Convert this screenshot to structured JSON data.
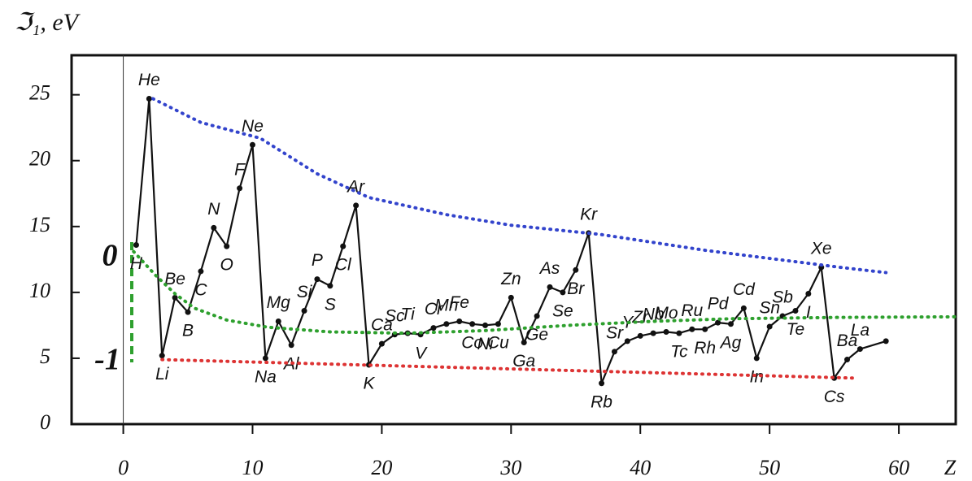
{
  "chart_data": {
    "type": "line",
    "y_label": "ℑ₁, eV",
    "x_label": "Z",
    "xlim": [
      -4,
      64.4
    ],
    "ylim": [
      0,
      28
    ],
    "xticks": [
      0,
      10,
      20,
      30,
      40,
      50,
      60
    ],
    "yticks": [
      0,
      5,
      10,
      15,
      20,
      25
    ],
    "series": [
      {
        "color": "#111111",
        "style": "solid",
        "x": [
          1,
          2,
          3,
          4,
          5,
          6,
          7,
          8,
          9,
          10,
          11,
          12,
          13,
          14,
          15,
          16,
          17,
          18,
          19,
          20,
          21,
          22,
          23,
          24,
          25,
          26,
          27,
          28,
          29,
          30,
          31,
          32,
          33,
          34,
          35,
          36,
          37,
          38,
          39,
          40,
          41,
          42,
          43,
          44,
          45,
          46,
          47,
          48,
          49,
          50,
          51,
          52,
          53,
          54,
          55,
          56,
          57,
          59
        ],
        "values": [
          13.6,
          24.7,
          5.2,
          9.6,
          8.5,
          11.6,
          14.9,
          13.5,
          17.9,
          21.2,
          5.0,
          7.8,
          6.0,
          8.6,
          11.0,
          10.5,
          13.5,
          16.6,
          4.5,
          6.1,
          6.8,
          6.9,
          6.8,
          7.3,
          7.6,
          7.8,
          7.6,
          7.5,
          7.6,
          9.6,
          6.2,
          8.2,
          10.4,
          10.0,
          11.7,
          14.5,
          3.1,
          5.5,
          6.3,
          6.7,
          6.9,
          7.0,
          6.9,
          7.2,
          7.2,
          7.7,
          7.6,
          8.8,
          5.0,
          7.4,
          8.2,
          8.6,
          9.9,
          11.9,
          3.5,
          4.9,
          5.7,
          6.3
        ],
        "labels": [
          "H",
          "He",
          "Li",
          "Be",
          "B",
          "C",
          "N",
          "O",
          "F",
          "Ne",
          "Na",
          "Mg",
          "Al",
          "Si",
          "P",
          "S",
          "Cl",
          "Ar",
          "K",
          "Ca",
          "Sc",
          "Ti",
          "V",
          "Cr",
          "Mn",
          "Fe",
          "Co",
          "Ni",
          "Cu",
          "Zn",
          "Ga",
          "Ge",
          "As",
          "Se",
          "Br",
          "Kr",
          "Rb",
          "Sr",
          "Y",
          "Zr",
          "Nb",
          "Mo",
          "Tc",
          "Ru",
          "Rh",
          "Pd",
          "Ag",
          "Cd",
          "In",
          "Sn",
          "Sb",
          "Te",
          "I",
          "Xe",
          "Cs",
          "Ba",
          "La",
          null
        ]
      },
      {
        "color": "#3344cc",
        "style": "dotted",
        "x": [
          2.3,
          6,
          10.6,
          15,
          19,
          25,
          30,
          36.9,
          45,
          55.5,
          59
        ],
        "values": [
          24.7,
          22.9,
          21.7,
          19,
          17.2,
          15.9,
          15.1,
          14.4,
          13.2,
          11.9,
          11.5
        ]
      },
      {
        "color": "#dd3333",
        "style": "dotted",
        "x": [
          3,
          56.5
        ],
        "values": [
          4.9,
          3.5
        ]
      },
      {
        "color": "#2ea02e",
        "style": "dotted",
        "x": [
          0.8,
          2.5,
          4,
          5.5,
          8,
          11.2,
          16,
          22,
          28,
          34.5,
          41,
          47,
          55,
          64.3
        ],
        "values": [
          13.1,
          11.3,
          9.9,
          8.8,
          7.9,
          7.35,
          7.0,
          6.9,
          7.1,
          7.5,
          7.8,
          8.0,
          8.1,
          8.15
        ]
      }
    ],
    "annotations": [
      {
        "text": "0",
        "color": "#2ea02e"
      },
      {
        "text": "-1",
        "color": "#2ea02e"
      }
    ]
  }
}
